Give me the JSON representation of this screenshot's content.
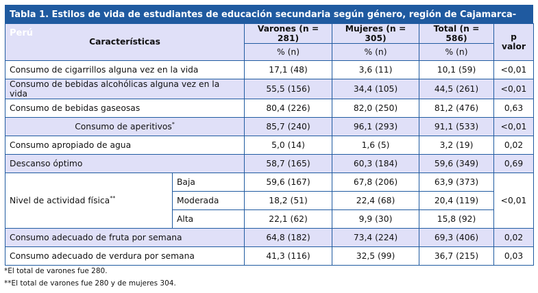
{
  "title": "Tabla 1. Estilos de vida de estudiantes de educación secundaria según género, región de Cajamarca-Perú",
  "headers": {
    "characteristics": "Características",
    "men": "Varones (n = 281)",
    "women": "Mujeres (n = 305)",
    "total": "Total (n = 586)",
    "pct": "% (n)",
    "p": "p valor"
  },
  "rows": [
    {
      "label": "Consumo de cigarrillos alguna vez en la vida",
      "men": "17,1 (48)",
      "women": "3,6 (11)",
      "total": "10,1 (59)",
      "p": "<0,01"
    },
    {
      "label": "Consumo de bebidas alcohólicas alguna vez en la vida",
      "men": "55,5 (156)",
      "women": "34,4 (105)",
      "total": "44,5 (261)",
      "p": "<0,01"
    },
    {
      "label": "Consumo de bebidas gaseosas",
      "men": "80,4 (226)",
      "women": "82,0 (250)",
      "total": "81,2 (476)",
      "p": "0,63"
    },
    {
      "label": "Consumo de aperitivos",
      "mark": "*",
      "men": "85,7 (240)",
      "women": "96,1 (293)",
      "total": "91,1 (533)",
      "p": "<0,01"
    },
    {
      "label": "Consumo apropiado de agua",
      "men": "5,0 (14)",
      "women": "1,6 (5)",
      "total": "3,2 (19)",
      "p": "0,02"
    },
    {
      "label": "Descanso óptimo",
      "men": "58,7 (165)",
      "women": "60,3 (184)",
      "total": "59,6 (349)",
      "p": "0,69"
    }
  ],
  "activity": {
    "label": "Nivel de actividad física",
    "mark": "**",
    "p": "<0,01",
    "levels": [
      {
        "label": "Baja",
        "men": "59,6 (167)",
        "women": "67,8 (206)",
        "total": "63,9 (373)"
      },
      {
        "label": "Moderada",
        "men": "18,2 (51)",
        "women": "22,4 (68)",
        "total": "20,4 (119)"
      },
      {
        "label": "Alta",
        "men": "22,1 (62)",
        "women": "9,9 (30)",
        "total": "15,8 (92)"
      }
    ]
  },
  "rows2": [
    {
      "label": "Consumo adecuado de fruta por semana",
      "men": "64,8 (182)",
      "women": "73,4 (224)",
      "total": "69,3 (406)",
      "p": "0,02"
    },
    {
      "label": "Consumo adecuado de verdura por semana",
      "men": "41,3 (116)",
      "women": "32,5 (99)",
      "total": "36,7 (215)",
      "p": "0,03"
    }
  ],
  "notes": [
    "*El total de varones fue 280.",
    "**El total de varones fue 280 y de mujeres 304."
  ]
}
